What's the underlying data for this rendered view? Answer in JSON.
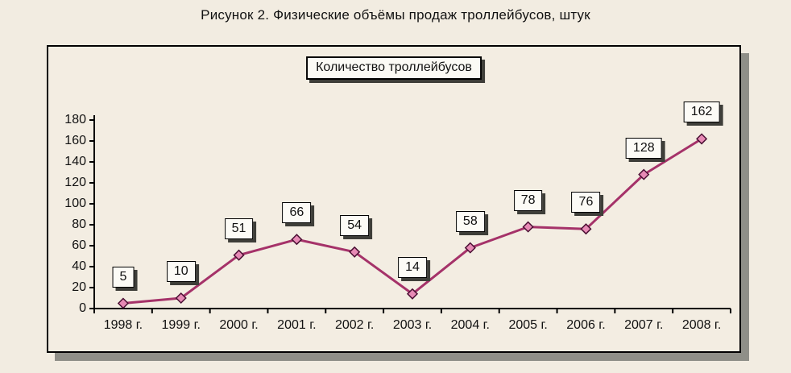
{
  "title": "Рисунок 2. Физические объёмы продаж троллейбусов, штук",
  "chart_data": {
    "type": "line",
    "title": "Рисунок 2. Физические объёмы продаж троллейбусов, штук",
    "legend": "Количество троллейбусов",
    "legend_position": "top-center",
    "categories": [
      "1998 г.",
      "1999 г.",
      "2000 г.",
      "2001 г.",
      "2002 г.",
      "2003 г.",
      "2004 г.",
      "2005 г.",
      "2006 г.",
      "2007 г.",
      "2008 г."
    ],
    "values": [
      5,
      10,
      51,
      66,
      54,
      14,
      58,
      78,
      76,
      128,
      162
    ],
    "ylim": [
      0,
      180
    ],
    "ytick_step": 20,
    "grid": false,
    "xlabel": "",
    "ylabel": "",
    "colors": {
      "line": "#a53269",
      "marker_fill": "#e78ab5",
      "marker_stroke": "#4a0f33",
      "axis": "#000000",
      "background": "#f2ece1",
      "label_box_bg": "#fcfbf6",
      "shadow": "#3e3e39"
    }
  }
}
